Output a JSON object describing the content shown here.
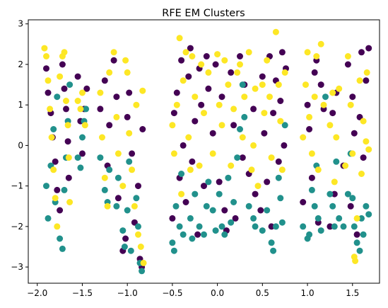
{
  "chart_data": {
    "type": "scatter",
    "title": "RFE EM Clusters",
    "xlabel": "",
    "ylabel": "",
    "xlim": [
      -2.1,
      1.8
    ],
    "ylim": [
      -3.4,
      3.1
    ],
    "xticks": [
      -2.0,
      -1.5,
      -1.0,
      -0.5,
      0.0,
      0.5,
      1.0,
      1.5
    ],
    "xtick_labels": [
      "−2.0",
      "−1.5",
      "−1.0",
      "−0.5",
      "0.0",
      "0.5",
      "1.0",
      "1.5"
    ],
    "yticks": [
      -3,
      -2,
      -1,
      0,
      1,
      2,
      3
    ],
    "ytick_labels": [
      "−3",
      "−2",
      "−1",
      "0",
      "1",
      "2",
      "3"
    ],
    "grid": false,
    "legend": "none",
    "colors": [
      "#440154",
      "#21918c",
      "#fde725"
    ],
    "series": [
      {
        "color": "#440154",
        "points": [
          [
            -1.9,
            1.9
          ],
          [
            -1.88,
            1.3
          ],
          [
            -1.85,
            0.8
          ],
          [
            -1.83,
            0.2
          ],
          [
            -1.8,
            -0.4
          ],
          [
            -1.78,
            -1.1
          ],
          [
            -1.75,
            -1.6
          ],
          [
            -1.72,
            2.0
          ],
          [
            -1.7,
            1.4
          ],
          [
            -1.68,
            0.9
          ],
          [
            -1.66,
            0.1
          ],
          [
            -1.65,
            -0.8
          ],
          [
            -1.55,
            1.7
          ],
          [
            -1.52,
            0.6
          ],
          [
            -1.5,
            -0.2
          ],
          [
            -1.48,
            0.9
          ],
          [
            -1.45,
            1.4
          ],
          [
            -1.3,
            0.9
          ],
          [
            -1.25,
            1.6
          ],
          [
            -1.22,
            -0.5
          ],
          [
            -1.2,
            0.5
          ],
          [
            -1.15,
            2.1
          ],
          [
            -1.12,
            1.2
          ],
          [
            -1.1,
            -1.3
          ],
          [
            -1.05,
            -2.6
          ],
          [
            -1.02,
            -2.3
          ],
          [
            -1.0,
            0.7
          ],
          [
            -0.98,
            1.3
          ],
          [
            -0.95,
            -0.2
          ],
          [
            -0.92,
            -1.9
          ],
          [
            -0.88,
            -1.0
          ],
          [
            -0.86,
            -2.8
          ],
          [
            -0.84,
            -3.0
          ],
          [
            -0.83,
            0.4
          ],
          [
            -0.5,
            -1.8
          ],
          [
            -0.48,
            0.8
          ],
          [
            -0.45,
            1.3
          ],
          [
            -0.42,
            -0.8
          ],
          [
            -0.4,
            2.1
          ],
          [
            -0.38,
            0.0
          ],
          [
            -0.35,
            -1.4
          ],
          [
            -0.32,
            1.7
          ],
          [
            -0.3,
            2.4
          ],
          [
            -0.28,
            -0.4
          ],
          [
            -0.25,
            0.6
          ],
          [
            -0.22,
            -2.2
          ],
          [
            -0.2,
            1.9
          ],
          [
            -0.18,
            1.0
          ],
          [
            -0.15,
            -1.0
          ],
          [
            -0.12,
            2.2
          ],
          [
            -0.1,
            1.4
          ],
          [
            -0.05,
            0.3
          ],
          [
            -0.02,
            2.0
          ],
          [
            0.02,
            -0.9
          ],
          [
            0.05,
            1.2
          ],
          [
            0.08,
            -1.6
          ],
          [
            0.1,
            -2.1
          ],
          [
            0.15,
            1.8
          ],
          [
            0.18,
            0.5
          ],
          [
            0.2,
            -1.8
          ],
          [
            0.25,
            2.2
          ],
          [
            0.28,
            -0.3
          ],
          [
            0.3,
            1.5
          ],
          [
            0.35,
            -0.7
          ],
          [
            0.4,
            0.9
          ],
          [
            0.42,
            -1.2
          ],
          [
            0.48,
            -1.6
          ],
          [
            0.5,
            1.7
          ],
          [
            0.52,
            0.3
          ],
          [
            0.55,
            -0.9
          ],
          [
            0.58,
            2.2
          ],
          [
            0.6,
            -2.0
          ],
          [
            0.62,
            0.8
          ],
          [
            0.65,
            1.6
          ],
          [
            0.68,
            -0.4
          ],
          [
            0.7,
            1.1
          ],
          [
            0.72,
            2.3
          ],
          [
            0.74,
            0.0
          ],
          [
            0.76,
            1.9
          ],
          [
            0.95,
            -1.4
          ],
          [
            1.0,
            1.0
          ],
          [
            1.02,
            0.4
          ],
          [
            1.05,
            -0.8
          ],
          [
            1.08,
            1.8
          ],
          [
            1.1,
            2.1
          ],
          [
            1.12,
            -1.9
          ],
          [
            1.15,
            1.5
          ],
          [
            1.18,
            0.9
          ],
          [
            1.25,
            -2.0
          ],
          [
            1.28,
            0.8
          ],
          [
            1.3,
            -1.2
          ],
          [
            1.32,
            1.3
          ],
          [
            1.4,
            -0.5
          ],
          [
            1.45,
            2.0
          ],
          [
            1.48,
            -1.5
          ],
          [
            1.5,
            1.2
          ],
          [
            1.52,
            0.3
          ],
          [
            1.55,
            -2.2
          ],
          [
            1.58,
            0.7
          ],
          [
            1.6,
            2.3
          ],
          [
            1.62,
            -0.3
          ],
          [
            1.65,
            1.6
          ],
          [
            1.68,
            2.4
          ]
        ]
      },
      {
        "color": "#21918c",
        "points": [
          [
            -1.9,
            -1.0
          ],
          [
            -1.88,
            -1.8
          ],
          [
            -1.85,
            -0.5
          ],
          [
            -1.82,
            0.4
          ],
          [
            -1.8,
            -1.4
          ],
          [
            -1.78,
            1.2
          ],
          [
            -1.75,
            -2.3
          ],
          [
            -1.72,
            -2.55
          ],
          [
            -1.7,
            -1.1
          ],
          [
            -1.68,
            -0.3
          ],
          [
            -1.66,
            0.6
          ],
          [
            -1.64,
            1.5
          ],
          [
            -1.55,
            -0.3
          ],
          [
            -1.52,
            -0.55
          ],
          [
            -1.5,
            0.2
          ],
          [
            -1.48,
            0.6
          ],
          [
            -1.46,
            0.9
          ],
          [
            -1.3,
            -0.3
          ],
          [
            -1.25,
            -1.1
          ],
          [
            -1.22,
            -1.4
          ],
          [
            -1.2,
            -0.6
          ],
          [
            -1.12,
            -1.5
          ],
          [
            -1.1,
            -0.8
          ],
          [
            -1.05,
            -2.1
          ],
          [
            -1.03,
            -2.5
          ],
          [
            -1.0,
            -1.6
          ],
          [
            -0.98,
            -0.4
          ],
          [
            -0.96,
            -2.6
          ],
          [
            -0.9,
            -1.3
          ],
          [
            -0.88,
            -2.0
          ],
          [
            -0.86,
            -2.9
          ],
          [
            -0.84,
            -3.1
          ],
          [
            -0.5,
            -2.4
          ],
          [
            -0.48,
            -2.6
          ],
          [
            -0.46,
            -1.5
          ],
          [
            -0.42,
            -2.0
          ],
          [
            -0.4,
            -0.7
          ],
          [
            -0.38,
            -2.2
          ],
          [
            -0.3,
            -1.8
          ],
          [
            -0.28,
            -2.3
          ],
          [
            -0.25,
            -1.2
          ],
          [
            -0.2,
            -2.0
          ],
          [
            -0.15,
            -2.2
          ],
          [
            -0.12,
            -1.5
          ],
          [
            -0.1,
            -0.9
          ],
          [
            -0.05,
            -1.6
          ],
          [
            -0.02,
            -2.1
          ],
          [
            0.02,
            -1.2
          ],
          [
            0.05,
            -2.0
          ],
          [
            0.08,
            -2.2
          ],
          [
            0.12,
            -0.8
          ],
          [
            0.15,
            -1.9
          ],
          [
            0.18,
            -1.4
          ],
          [
            0.22,
            -0.3
          ],
          [
            0.25,
            0.4
          ],
          [
            0.28,
            1.5
          ],
          [
            0.3,
            0.7
          ],
          [
            0.35,
            -1.5
          ],
          [
            0.4,
            -1.8
          ],
          [
            0.42,
            -2.0
          ],
          [
            0.5,
            -2.1
          ],
          [
            0.55,
            -1.6
          ],
          [
            0.6,
            -2.4
          ],
          [
            0.62,
            -2.6
          ],
          [
            0.65,
            -2.0
          ],
          [
            0.68,
            -0.8
          ],
          [
            0.7,
            -1.3
          ],
          [
            0.72,
            -1.9
          ],
          [
            0.75,
            0.5
          ],
          [
            0.95,
            -2.0
          ],
          [
            1.0,
            -2.3
          ],
          [
            1.02,
            -2.2
          ],
          [
            1.05,
            -1.1
          ],
          [
            1.08,
            -1.5
          ],
          [
            1.1,
            -0.5
          ],
          [
            1.12,
            -1.8
          ],
          [
            1.15,
            -2.1
          ],
          [
            1.2,
            1.2
          ],
          [
            1.25,
            -1.2
          ],
          [
            1.28,
            -1.5
          ],
          [
            1.3,
            -2.0
          ],
          [
            1.32,
            -0.4
          ],
          [
            1.35,
            -1.8
          ],
          [
            1.4,
            -2.0
          ],
          [
            1.45,
            -1.2
          ],
          [
            1.48,
            -0.2
          ],
          [
            1.5,
            -1.3
          ],
          [
            1.52,
            -2.0
          ],
          [
            1.55,
            -2.4
          ],
          [
            1.58,
            -2.6
          ],
          [
            1.6,
            -1.8
          ],
          [
            1.62,
            -2.2
          ],
          [
            1.65,
            -1.5
          ],
          [
            1.68,
            -1.7
          ]
        ]
      },
      {
        "color": "#fde725",
        "points": [
          [
            -1.92,
            2.4
          ],
          [
            -1.9,
            2.2
          ],
          [
            -1.88,
            1.6
          ],
          [
            -1.86,
            0.9
          ],
          [
            -1.84,
            0.2
          ],
          [
            -1.82,
            -0.6
          ],
          [
            -1.8,
            -1.3
          ],
          [
            -1.78,
            -2.0
          ],
          [
            -1.75,
            1.7
          ],
          [
            -1.72,
            2.2
          ],
          [
            -1.7,
            2.3
          ],
          [
            -1.68,
            1.1
          ],
          [
            -1.66,
            0.5
          ],
          [
            -1.65,
            -0.3
          ],
          [
            -1.64,
            -1.4
          ],
          [
            -1.55,
            1.1
          ],
          [
            -1.52,
            0.9
          ],
          [
            -1.5,
            1.3
          ],
          [
            -1.47,
            0.5
          ],
          [
            -1.3,
            1.3
          ],
          [
            -1.28,
            0.2
          ],
          [
            -1.25,
            -0.8
          ],
          [
            -1.22,
            -1.5
          ],
          [
            -1.2,
            1.8
          ],
          [
            -1.15,
            2.3
          ],
          [
            -1.12,
            0.7
          ],
          [
            -1.1,
            -0.2
          ],
          [
            -1.05,
            -1.0
          ],
          [
            -1.02,
            2.1
          ],
          [
            -1.0,
            1.8
          ],
          [
            -0.98,
            0.3
          ],
          [
            -0.95,
            -0.6
          ],
          [
            -0.92,
            -1.5
          ],
          [
            -0.9,
            1.0
          ],
          [
            -0.88,
            -2.2
          ],
          [
            -0.85,
            -2.5
          ],
          [
            -0.83,
            1.35
          ],
          [
            -0.82,
            -2.9
          ],
          [
            -0.5,
            0.5
          ],
          [
            -0.48,
            -0.2
          ],
          [
            -0.45,
            1.0
          ],
          [
            -0.42,
            2.65
          ],
          [
            -0.4,
            -1.2
          ],
          [
            -0.38,
            1.6
          ],
          [
            -0.35,
            2.3
          ],
          [
            -0.32,
            0.2
          ],
          [
            -0.3,
            -0.6
          ],
          [
            -0.28,
            2.2
          ],
          [
            -0.25,
            1.2
          ],
          [
            -0.2,
            -0.5
          ],
          [
            -0.18,
            2.0
          ],
          [
            -0.15,
            0.8
          ],
          [
            -0.1,
            1.8
          ],
          [
            -0.05,
            -0.2
          ],
          [
            0.0,
            2.25
          ],
          [
            0.02,
            1.0
          ],
          [
            0.05,
            0.5
          ],
          [
            0.08,
            2.1
          ],
          [
            0.12,
            1.5
          ],
          [
            0.15,
            -0.5
          ],
          [
            0.18,
            0.9
          ],
          [
            0.22,
            1.8
          ],
          [
            0.25,
            2.0
          ],
          [
            0.28,
            0.2
          ],
          [
            0.3,
            1.2
          ],
          [
            0.35,
            2.3
          ],
          [
            0.38,
            -0.6
          ],
          [
            0.4,
            0.0
          ],
          [
            0.42,
            1.4
          ],
          [
            0.45,
            -1.0
          ],
          [
            0.5,
            1.5
          ],
          [
            0.52,
            0.8
          ],
          [
            0.55,
            2.1
          ],
          [
            0.58,
            1.2
          ],
          [
            0.6,
            -0.3
          ],
          [
            0.65,
            2.8
          ],
          [
            0.68,
            1.5
          ],
          [
            0.7,
            0.6
          ],
          [
            0.72,
            -0.6
          ],
          [
            0.75,
            1.8
          ],
          [
            0.95,
            0.2
          ],
          [
            0.98,
            1.5
          ],
          [
            1.0,
            2.3
          ],
          [
            1.02,
            0.7
          ],
          [
            1.05,
            -0.2
          ],
          [
            1.08,
            1.2
          ],
          [
            1.1,
            2.2
          ],
          [
            1.12,
            -0.6
          ],
          [
            1.15,
            2.5
          ],
          [
            1.18,
            1.0
          ],
          [
            1.25,
            0.5
          ],
          [
            1.28,
            1.3
          ],
          [
            1.3,
            -0.9
          ],
          [
            1.32,
            0.2
          ],
          [
            1.35,
            1.4
          ],
          [
            1.42,
            -0.5
          ],
          [
            1.45,
            2.2
          ],
          [
            1.48,
            1.0
          ],
          [
            1.5,
            -0.2
          ],
          [
            1.52,
            -2.75
          ],
          [
            1.53,
            -2.85
          ],
          [
            1.55,
            -1.8
          ],
          [
            1.58,
            1.6
          ],
          [
            1.6,
            -0.7
          ],
          [
            1.62,
            0.6
          ],
          [
            1.65,
            0.1
          ],
          [
            1.66,
            1.8
          ],
          [
            1.68,
            -0.1
          ]
        ]
      }
    ]
  }
}
